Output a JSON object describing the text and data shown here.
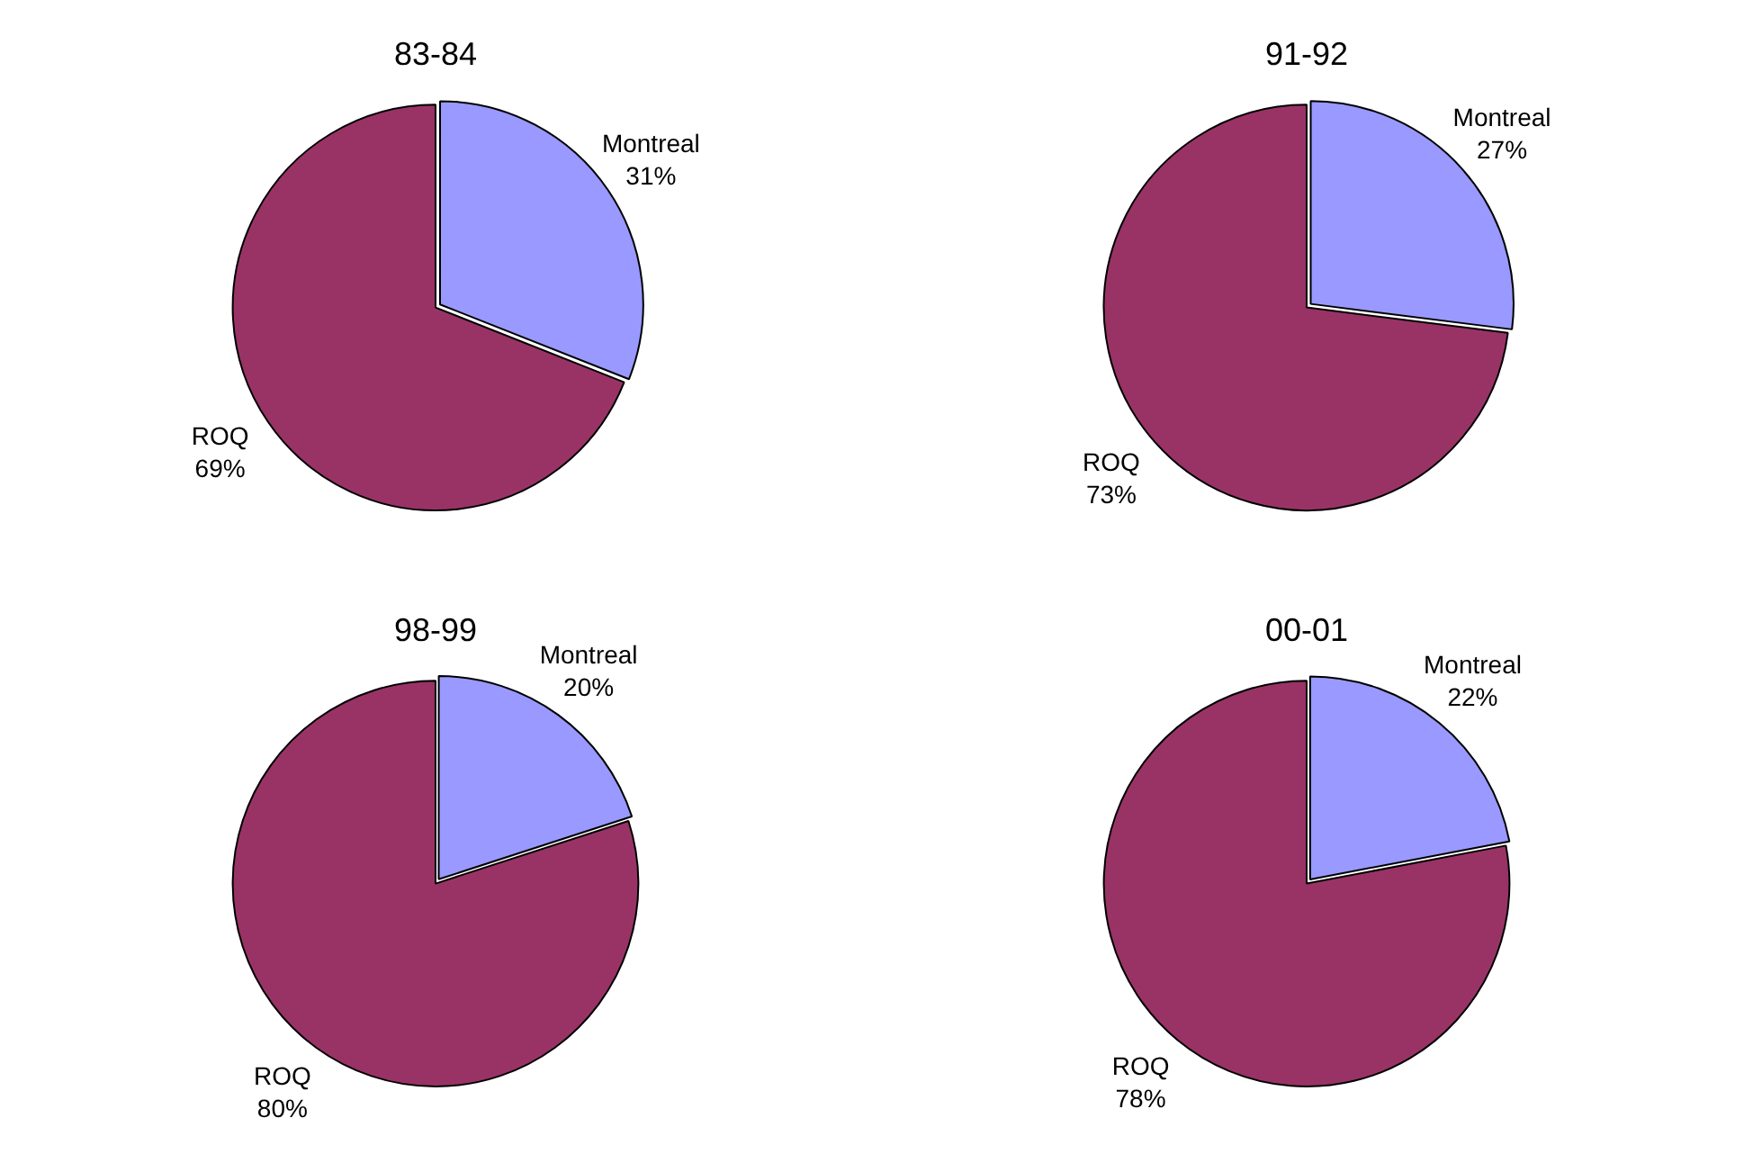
{
  "chart_data": [
    {
      "type": "pie",
      "title": "83-84",
      "categories": [
        "Montreal",
        "ROQ"
      ],
      "values": [
        31,
        69
      ],
      "value_labels": [
        "31%",
        "69%"
      ],
      "colors": [
        "#9999ff",
        "#993366"
      ]
    },
    {
      "type": "pie",
      "title": "91-92",
      "categories": [
        "Montreal",
        "ROQ"
      ],
      "values": [
        27,
        73
      ],
      "value_labels": [
        "27%",
        "73%"
      ],
      "colors": [
        "#9999ff",
        "#993366"
      ]
    },
    {
      "type": "pie",
      "title": "98-99",
      "categories": [
        "Montreal",
        "ROQ"
      ],
      "values": [
        20,
        80
      ],
      "value_labels": [
        "20%",
        "80%"
      ],
      "colors": [
        "#9999ff",
        "#993366"
      ]
    },
    {
      "type": "pie",
      "title": "00-01",
      "categories": [
        "Montreal",
        "ROQ"
      ],
      "values": [
        22,
        78
      ],
      "value_labels": [
        "22%",
        "78%"
      ],
      "colors": [
        "#9999ff",
        "#993366"
      ]
    }
  ]
}
